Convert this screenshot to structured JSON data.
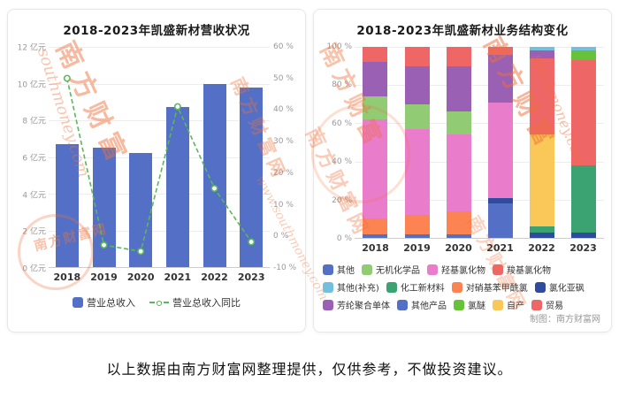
{
  "watermarks": {
    "brand": "南方财富",
    "brand_full": "南方财富网",
    "site": "southmoney.com",
    "site_full": "www.southmoney.com",
    "color": "#f0703a"
  },
  "footer": {
    "caption": "以上数据由南方财富网整理提供，仅供参考，不做投资建议。"
  },
  "credit": "制图：南方财富网",
  "chart_data": [
    {
      "type": "bar+line",
      "title": "2018-2023年凯盛新材营收状况",
      "categories": [
        "2018",
        "2019",
        "2020",
        "2021",
        "2022",
        "2023"
      ],
      "series": [
        {
          "name": "营业总收入",
          "chart": "bar",
          "axis": "left",
          "unit": "亿元",
          "color": "#5470c6",
          "values": [
            6.7,
            6.5,
            6.2,
            8.7,
            10,
            9.8
          ]
        },
        {
          "name": "营业总收入同比",
          "chart": "line",
          "axis": "right",
          "unit": "%",
          "color": "#5bb75b",
          "values": [
            50,
            -3,
            -5,
            41,
            15,
            -2
          ]
        }
      ],
      "left_axis": {
        "min": 0,
        "max": 12,
        "step": 2,
        "suffix": "亿元"
      },
      "right_axis": {
        "min": -10,
        "max": 60,
        "step": 10,
        "suffix": "%"
      },
      "grid": true,
      "legend_position": "bottom"
    },
    {
      "type": "stacked-bar-percent",
      "title": "2018-2023年凯盛新材业务结构变化",
      "categories": [
        "2018",
        "2019",
        "2020",
        "2021",
        "2022",
        "2023"
      ],
      "y_axis": {
        "min": 0,
        "max": 100,
        "step": 20,
        "suffix": "%"
      },
      "legend": [
        "其他",
        "无机化学品",
        "羟基氯化物",
        "羧基氯化物",
        "其他(补充)",
        "化工新材料",
        "对硝基苯甲酰氯",
        "氯化亚砜",
        "芳纶聚合单体",
        "其他产品",
        "氯醚",
        "自产",
        "贸易"
      ],
      "palette": {
        "其他": "#5470c6",
        "无机化学品": "#91cc75",
        "羟基氯化物": "#ea7ccc",
        "羧基氯化物": "#ee6666",
        "其他(补充)": "#73c0de",
        "化工新材料": "#3ba272",
        "对硝基苯甲酰氯": "#fc8452",
        "氯化亚砜": "#2f4b9e",
        "芳纶聚合单体": "#9a60b4",
        "其他产品": "#5470c6",
        "氯醚": "#67c23a",
        "自产": "#fac858",
        "贸易": "#ee6666"
      },
      "stacks": {
        "2018": [
          {
            "name": "其他产品",
            "value": 2
          },
          {
            "name": "对硝基苯甲酰氯",
            "value": 8
          },
          {
            "name": "羟基氯化物",
            "value": 52
          },
          {
            "name": "无机化学品",
            "value": 12
          },
          {
            "name": "芳纶聚合单体",
            "value": 18
          },
          {
            "name": "羧基氯化物",
            "value": 8
          }
        ],
        "2019": [
          {
            "name": "其他产品",
            "value": 2
          },
          {
            "name": "对硝基苯甲酰氯",
            "value": 10
          },
          {
            "name": "羟基氯化物",
            "value": 45
          },
          {
            "name": "无机化学品",
            "value": 13
          },
          {
            "name": "芳纶聚合单体",
            "value": 20
          },
          {
            "name": "羧基氯化物",
            "value": 10
          }
        ],
        "2020": [
          {
            "name": "其他产品",
            "value": 2
          },
          {
            "name": "对硝基苯甲酰氯",
            "value": 12
          },
          {
            "name": "羟基氯化物",
            "value": 40
          },
          {
            "name": "无机化学品",
            "value": 12
          },
          {
            "name": "芳纶聚合单体",
            "value": 24
          },
          {
            "name": "羧基氯化物",
            "value": 10
          }
        ],
        "2021": [
          {
            "name": "其他产品",
            "value": 18
          },
          {
            "name": "氯化亚砜",
            "value": 3
          },
          {
            "name": "羟基氯化物",
            "value": 50
          },
          {
            "name": "芳纶聚合单体",
            "value": 25
          },
          {
            "name": "羧基氯化物",
            "value": 4
          }
        ],
        "2022": [
          {
            "name": "氯化亚砜",
            "value": 3
          },
          {
            "name": "化工新材料",
            "value": 3
          },
          {
            "name": "自产",
            "value": 48
          },
          {
            "name": "贸易",
            "value": 40
          },
          {
            "name": "芳纶聚合单体",
            "value": 4
          },
          {
            "name": "其他(补充)",
            "value": 2
          }
        ],
        "2023": [
          {
            "name": "氯化亚砜",
            "value": 3
          },
          {
            "name": "化工新材料",
            "value": 35
          },
          {
            "name": "贸易",
            "value": 55
          },
          {
            "name": "氯醚",
            "value": 5
          },
          {
            "name": "其他(补充)",
            "value": 2
          }
        ]
      }
    }
  ]
}
